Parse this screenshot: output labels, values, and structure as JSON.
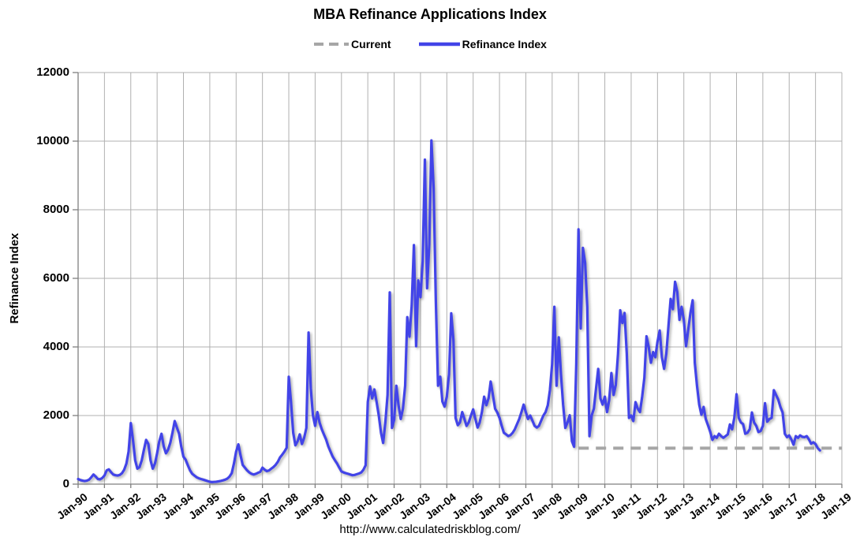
{
  "title": "MBA Refinance Applications Index",
  "footer_url": "http://www.calculatedriskblog.com/",
  "colors": {
    "series_blue": "#4244E8",
    "current_gray": "#A6A6A6",
    "gridline": "#B0B0B0",
    "axis": "#7F7F7F",
    "text": "#000000"
  },
  "legend": {
    "items": [
      {
        "label": "Current",
        "style": "dashed",
        "color": "#A6A6A6"
      },
      {
        "label": "Refinance Index",
        "style": "solid",
        "color": "#4244E8"
      }
    ]
  },
  "chart_data": {
    "type": "line",
    "title": "MBA Refinance Applications Index",
    "xlabel": "",
    "ylabel": "Refinance Index",
    "ylim": [
      0,
      12000
    ],
    "yticks": [
      0,
      2000,
      4000,
      6000,
      8000,
      10000,
      12000
    ],
    "xlim": [
      1990,
      2019
    ],
    "xtick_years": [
      1990,
      1991,
      1992,
      1993,
      1994,
      1995,
      1996,
      1997,
      1998,
      1999,
      2000,
      2001,
      2002,
      2003,
      2004,
      2005,
      2006,
      2007,
      2008,
      2009,
      2010,
      2011,
      2012,
      2013,
      2014,
      2015,
      2016,
      2017,
      2018,
      2019
    ],
    "xtick_labels": [
      "Jan-90",
      "Jan-91",
      "Jan-92",
      "Jan-93",
      "Jan-94",
      "Jan-95",
      "Jan-96",
      "Jan-97",
      "Jan-98",
      "Jan-99",
      "Jan-00",
      "Jan-01",
      "Jan-02",
      "Jan-03",
      "Jan-04",
      "Jan-05",
      "Jan-06",
      "Jan-07",
      "Jan-08",
      "Jan-09",
      "Jan-10",
      "Jan-11",
      "Jan-12",
      "Jan-13",
      "Jan-14",
      "Jan-15",
      "Jan-16",
      "Jan-17",
      "Jan-18",
      "Jan-19"
    ],
    "grid": true,
    "legend_position": "top",
    "series": [
      {
        "name": "Refinance Index",
        "style": "solid",
        "color": "#4244E8",
        "x_start": 1990.0,
        "points_per_year": 12,
        "values": [
          150,
          120,
          100,
          90,
          100,
          130,
          200,
          280,
          220,
          150,
          140,
          180,
          250,
          400,
          430,
          350,
          280,
          260,
          250,
          270,
          320,
          420,
          600,
          950,
          1780,
          1300,
          700,
          450,
          500,
          700,
          1000,
          1290,
          1170,
          700,
          450,
          600,
          900,
          1250,
          1470,
          1100,
          900,
          1000,
          1200,
          1500,
          1840,
          1650,
          1470,
          1100,
          800,
          710,
          550,
          400,
          300,
          250,
          200,
          170,
          150,
          130,
          110,
          90,
          70,
          60,
          65,
          70,
          80,
          95,
          110,
          130,
          160,
          220,
          320,
          600,
          950,
          1160,
          850,
          560,
          480,
          400,
          340,
          300,
          280,
          300,
          330,
          360,
          480,
          420,
          380,
          400,
          450,
          500,
          560,
          650,
          780,
          860,
          950,
          1060,
          3130,
          2400,
          1500,
          1130,
          1250,
          1450,
          1170,
          1350,
          1640,
          4420,
          2800,
          2010,
          1700,
          2100,
          1800,
          1600,
          1450,
          1300,
          1100,
          950,
          800,
          700,
          600,
          480,
          370,
          340,
          320,
          300,
          280,
          260,
          270,
          290,
          310,
          340,
          420,
          550,
          2400,
          2850,
          2500,
          2760,
          2400,
          2000,
          1500,
          1200,
          1800,
          2600,
          5590,
          1640,
          1880,
          2870,
          2300,
          1900,
          2200,
          2870,
          4870,
          4300,
          5200,
          6970,
          4020,
          5940,
          5450,
          6500,
          9460,
          5710,
          7000,
          10020,
          8620,
          5330,
          2870,
          3130,
          2410,
          2260,
          2550,
          3200,
          4980,
          4200,
          1930,
          1720,
          1800,
          2100,
          1900,
          1700,
          1800,
          2000,
          2180,
          1900,
          1650,
          1800,
          2100,
          2550,
          2300,
          2500,
          2990,
          2600,
          2200,
          2090,
          1930,
          1700,
          1500,
          1450,
          1400,
          1430,
          1500,
          1600,
          1750,
          1900,
          2100,
          2320,
          2100,
          1900,
          2000,
          1850,
          1700,
          1650,
          1700,
          1850,
          2000,
          2100,
          2300,
          2740,
          3500,
          5170,
          2870,
          4280,
          3200,
          2320,
          1640,
          1800,
          2010,
          1250,
          1090,
          3500,
          7430,
          4540,
          6890,
          6450,
          5170,
          1400,
          2000,
          2200,
          2800,
          3360,
          2500,
          2320,
          2550,
          2100,
          2450,
          3240,
          2600,
          2900,
          3800,
          5070,
          4700,
          4990,
          3800,
          1930,
          2000,
          1840,
          2390,
          2200,
          2100,
          2550,
          3100,
          4310,
          4000,
          3540,
          3850,
          3700,
          4150,
          4480,
          3700,
          3360,
          3800,
          4630,
          5400,
          5100,
          5900,
          5600,
          4790,
          5170,
          4790,
          4020,
          4500,
          5000,
          5360,
          3540,
          2870,
          2320,
          2020,
          2250,
          1900,
          1720,
          1530,
          1290,
          1400,
          1350,
          1470,
          1400,
          1350,
          1400,
          1450,
          1740,
          1600,
          1930,
          2620,
          1930,
          1800,
          1750,
          1470,
          1500,
          1600,
          2090,
          1800,
          1700,
          1520,
          1550,
          1700,
          2360,
          1820,
          1900,
          1930,
          2740,
          2600,
          2470,
          2250,
          2090,
          1470,
          1370,
          1420,
          1300,
          1150,
          1400,
          1350,
          1420,
          1380,
          1370,
          1400,
          1300,
          1180,
          1220,
          1170,
          1050,
          985
        ]
      },
      {
        "name": "Current",
        "style": "dashed",
        "color": "#A6A6A6",
        "value": 1050,
        "x_range": [
          2009.0,
          2019.0
        ]
      }
    ]
  }
}
